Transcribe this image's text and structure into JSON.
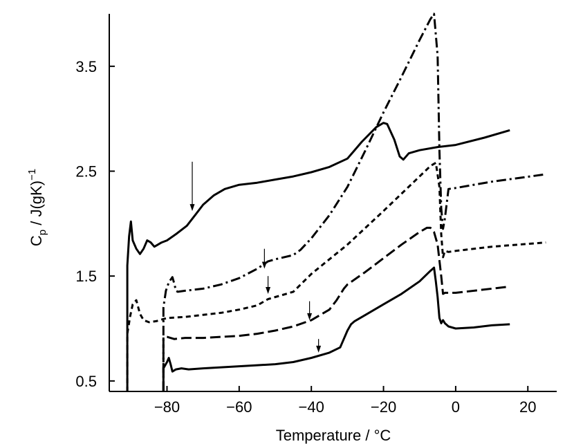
{
  "chart_data": {
    "type": "line",
    "xlabel": "Temperature / °C",
    "ylabel": "C_p / J(gK)^-1",
    "ylabel_main": "C",
    "ylabel_sub": "p",
    "ylabel_unit": " / J(gK)",
    "ylabel_sup": "−1",
    "xlim": [
      -96,
      28
    ],
    "ylim": [
      0.4,
      4.0
    ],
    "x_ticks": [
      -80,
      -60,
      -40,
      -20,
      0,
      20
    ],
    "x_tick_labels": [
      "−80",
      "−60",
      "−40",
      "−20",
      "0",
      "20"
    ],
    "y_ticks": [
      0.5,
      1.5,
      2.5,
      3.5
    ],
    "y_tick_labels": [
      "0.5",
      "1.5",
      "2.5",
      "3.5"
    ],
    "grid": false,
    "series": [
      {
        "style": "solid",
        "x": [
          -91,
          -91,
          -90.5,
          -90,
          -89.5,
          -88.5,
          -87.5,
          -86.5,
          -85.5,
          -84.5,
          -83.5,
          -82.5,
          -81.5,
          -80,
          -77.5,
          -74.5,
          -72,
          -70,
          -67,
          -64,
          -60,
          -55,
          -50,
          -45,
          -40,
          -35,
          -30,
          -26,
          -22,
          -20,
          -19,
          -17,
          -15.5,
          -14.5,
          -13,
          -10,
          -5,
          0,
          8,
          15
        ],
        "y": [
          0.4,
          1.6,
          1.88,
          2.02,
          1.84,
          1.76,
          1.71,
          1.76,
          1.84,
          1.82,
          1.78,
          1.8,
          1.82,
          1.84,
          1.9,
          1.98,
          2.09,
          2.18,
          2.27,
          2.33,
          2.37,
          2.39,
          2.42,
          2.45,
          2.49,
          2.54,
          2.62,
          2.78,
          2.92,
          2.96,
          2.95,
          2.8,
          2.64,
          2.61,
          2.67,
          2.7,
          2.73,
          2.75,
          2.82,
          2.89
        ]
      },
      {
        "style": "dash-dot",
        "x": [
          -81,
          -81,
          -80.3,
          -79.5,
          -78.5,
          -78,
          -77.5,
          -77,
          -75,
          -70,
          -65,
          -60,
          -55,
          -52,
          -50,
          -45,
          -43,
          -40,
          -35,
          -30,
          -25,
          -20,
          -15,
          -10,
          -7,
          -6,
          -5,
          -4.5,
          -4,
          -3.5,
          -3,
          -2,
          0,
          10,
          25
        ],
        "y": [
          0.4,
          1.2,
          1.36,
          1.44,
          1.49,
          1.43,
          1.36,
          1.35,
          1.36,
          1.38,
          1.42,
          1.48,
          1.57,
          1.64,
          1.66,
          1.7,
          1.75,
          1.86,
          2.08,
          2.35,
          2.7,
          3.06,
          3.4,
          3.75,
          3.95,
          4.0,
          3.6,
          2.7,
          2.15,
          1.95,
          2.05,
          2.33,
          2.34,
          2.4,
          2.47
        ]
      },
      {
        "style": "short-dash",
        "x": [
          -91,
          -91,
          -90.2,
          -89.5,
          -88.5,
          -87.5,
          -86.5,
          -85,
          -83,
          -80,
          -75,
          -70,
          -65,
          -60,
          -55,
          -52,
          -50,
          -48,
          -45,
          -40,
          -30,
          -20,
          -10,
          -7,
          -5.5,
          -4.5,
          -4,
          -3.5,
          -3,
          -2,
          0,
          10,
          25
        ],
        "y": [
          0.4,
          0.95,
          1.12,
          1.23,
          1.27,
          1.14,
          1.08,
          1.06,
          1.07,
          1.1,
          1.11,
          1.13,
          1.15,
          1.18,
          1.22,
          1.28,
          1.3,
          1.32,
          1.35,
          1.52,
          1.8,
          2.12,
          2.45,
          2.55,
          2.58,
          2.35,
          1.9,
          1.68,
          1.74,
          1.73,
          1.74,
          1.78,
          1.82
        ]
      },
      {
        "style": "long-dash",
        "x": [
          -81,
          -81,
          -80,
          -78,
          -75,
          -70,
          -65,
          -60,
          -55,
          -50,
          -45,
          -40,
          -35,
          -33,
          -31,
          -30,
          -25,
          -20,
          -15,
          -10,
          -8,
          -7,
          -6,
          -5,
          -4,
          -3.5,
          -3,
          0,
          10,
          15
        ],
        "y": [
          0.4,
          0.92,
          0.92,
          0.9,
          0.91,
          0.91,
          0.92,
          0.93,
          0.95,
          0.98,
          1.02,
          1.08,
          1.18,
          1.27,
          1.38,
          1.42,
          1.54,
          1.67,
          1.8,
          1.92,
          1.96,
          1.96,
          1.92,
          1.8,
          1.5,
          1.33,
          1.34,
          1.34,
          1.38,
          1.4
        ]
      },
      {
        "style": "solid",
        "x": [
          -81,
          -81,
          -80,
          -79.5,
          -79,
          -78.5,
          -77.5,
          -76,
          -74,
          -70,
          -65,
          -60,
          -55,
          -50,
          -45,
          -40,
          -35,
          -32,
          -30,
          -29,
          -28,
          -25,
          -20,
          -15,
          -10,
          -7,
          -6,
          -5.5,
          -5,
          -4.5,
          -4,
          -3.5,
          -3,
          -2,
          0,
          5,
          10,
          15
        ],
        "y": [
          0.4,
          0.62,
          0.68,
          0.72,
          0.66,
          0.59,
          0.61,
          0.62,
          0.61,
          0.62,
          0.63,
          0.64,
          0.65,
          0.66,
          0.68,
          0.72,
          0.77,
          0.82,
          0.98,
          1.04,
          1.07,
          1.13,
          1.23,
          1.33,
          1.45,
          1.55,
          1.58,
          1.45,
          1.3,
          1.1,
          1.05,
          1.08,
          1.05,
          1.02,
          1.0,
          1.01,
          1.03,
          1.04
        ]
      }
    ],
    "annotations": [
      {
        "type": "arrow",
        "x": -73,
        "y_from": 2.59,
        "y_to": 2.12
      },
      {
        "type": "arrow",
        "x": -53,
        "y_from": 1.76,
        "y_to": 1.57
      },
      {
        "type": "arrow",
        "x": -52,
        "y_from": 1.5,
        "y_to": 1.33
      },
      {
        "type": "arrow",
        "x": -40.5,
        "y_from": 1.26,
        "y_to": 1.08
      },
      {
        "type": "arrow",
        "x": -38,
        "y_from": 0.9,
        "y_to": 0.77
      }
    ]
  }
}
